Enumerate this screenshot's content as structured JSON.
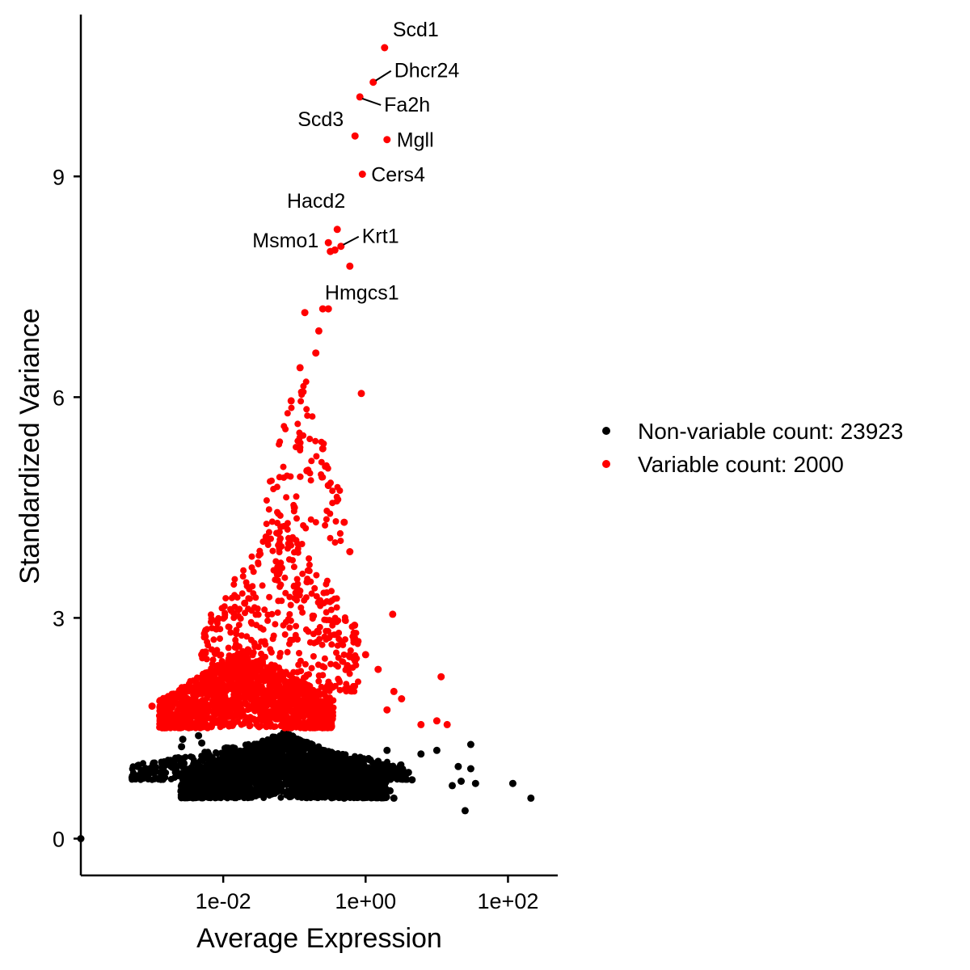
{
  "chart_data": {
    "type": "scatter",
    "xlabel": "Average Expression",
    "ylabel": "Standardized Variance",
    "x_scale": "log10",
    "xlim": [
      0.0001,
      500
    ],
    "ylim": [
      -0.5,
      11.2
    ],
    "x_ticks": [
      {
        "value": 0.01,
        "label": "1e-02"
      },
      {
        "value": 1,
        "label": "1e+00"
      },
      {
        "value": 100,
        "label": "1e+02"
      }
    ],
    "y_ticks": [
      {
        "value": 0,
        "label": "0"
      },
      {
        "value": 3,
        "label": "3"
      },
      {
        "value": 6,
        "label": "6"
      },
      {
        "value": 9,
        "label": "9"
      }
    ],
    "grid": false,
    "legend_position": "right",
    "series": [
      {
        "name": "Non-variable count: 23923",
        "color": "#000000",
        "points": [
          [
            0.0001,
            0
          ],
          [
            0.00063,
            0.98
          ],
          [
            0.00063,
            0.99
          ],
          [
            0.0014,
            0.97
          ],
          [
            0.0014,
            0.95
          ],
          [
            0.0021,
            0.96
          ],
          [
            0.0022,
            0.98
          ],
          [
            0.0026,
            1.25
          ],
          [
            0.0027,
            1.35
          ],
          [
            0.003,
            0.9
          ],
          [
            0.0045,
            1.4
          ],
          [
            0.005,
            1.3
          ],
          [
            0.007,
            1.1
          ],
          [
            3.1,
            1.0
          ],
          [
            4.0,
            0.9
          ],
          [
            4.5,
            0.8
          ],
          [
            6.0,
            1.15
          ],
          [
            10.0,
            1.2
          ],
          [
            16.5,
            0.72
          ],
          [
            20.0,
            0.98
          ],
          [
            22.0,
            0.78
          ],
          [
            25.0,
            0.38
          ],
          [
            30.0,
            0.95
          ],
          [
            30.0,
            1.28
          ],
          [
            35.0,
            0.75
          ],
          [
            117.0,
            0.75
          ],
          [
            210.0,
            0.55
          ],
          [
            0.5,
            0.55
          ],
          [
            0.8,
            0.6
          ],
          [
            1.2,
            0.7
          ],
          [
            1.8,
            0.85
          ],
          [
            2.2,
            0.65
          ],
          [
            2.5,
            0.55
          ],
          [
            1.5,
            1.05
          ],
          [
            2.0,
            1.2
          ]
        ]
      },
      {
        "name": "Variable count: 2000",
        "color": "#ff0000",
        "points": [
          [
            1.85,
            10.75
          ],
          [
            1.28,
            10.28
          ],
          [
            0.83,
            10.08
          ],
          [
            0.71,
            9.55
          ],
          [
            2.0,
            9.5
          ],
          [
            0.9,
            9.03
          ],
          [
            0.4,
            8.28
          ],
          [
            0.3,
            8.1
          ],
          [
            0.45,
            8.05
          ],
          [
            0.32,
            7.98
          ],
          [
            0.37,
            8.0
          ],
          [
            0.6,
            7.78
          ],
          [
            0.25,
            7.2
          ],
          [
            0.3,
            7.2
          ],
          [
            0.14,
            7.15
          ],
          [
            0.22,
            6.9
          ],
          [
            0.2,
            6.6
          ],
          [
            0.12,
            6.4
          ],
          [
            0.87,
            6.05
          ],
          [
            0.09,
            5.95
          ],
          [
            2.4,
            3.05
          ],
          [
            11.5,
            2.2
          ],
          [
            10.0,
            1.6
          ],
          [
            14.0,
            1.55
          ],
          [
            6.0,
            1.55
          ],
          [
            3.2,
            1.9
          ],
          [
            2.0,
            1.75
          ],
          [
            0.001,
            1.8
          ],
          [
            0.0018,
            1.65
          ],
          [
            0.003,
            2.0
          ],
          [
            0.005,
            2.5
          ],
          [
            0.008,
            2.85
          ],
          [
            0.02,
            3.2
          ],
          [
            0.04,
            4.1
          ],
          [
            0.06,
            3.6
          ],
          [
            0.1,
            4.5
          ],
          [
            0.15,
            5.0
          ],
          [
            0.25,
            5.3
          ],
          [
            0.3,
            4.8
          ],
          [
            0.5,
            4.3
          ],
          [
            0.6,
            3.9
          ],
          [
            0.7,
            2.9
          ],
          [
            1.0,
            2.5
          ],
          [
            1.5,
            2.3
          ],
          [
            2.5,
            2.0
          ]
        ]
      }
    ],
    "cloud_clusters": [
      {
        "series": 0,
        "x_log_range": [
          -2.6,
          0.3
        ],
        "y_range": [
          0.55,
          1.45
        ],
        "n": 2600
      },
      {
        "series": 0,
        "x_log_range": [
          -3.3,
          0.6
        ],
        "y_range": [
          0.8,
          1.35
        ],
        "n": 500
      },
      {
        "series": 1,
        "x_log_range": [
          -2.9,
          -0.45
        ],
        "y_range": [
          1.5,
          2.6
        ],
        "n": 1300
      },
      {
        "series": 1,
        "x_log_range": [
          -2.3,
          -0.1
        ],
        "y_range": [
          2.0,
          4.5
        ],
        "n": 450
      },
      {
        "series": 1,
        "x_log_range": [
          -1.4,
          -0.35
        ],
        "y_range": [
          4.0,
          6.5
        ],
        "n": 90
      }
    ],
    "annotations": [
      {
        "label": "Scd1",
        "x": 1.85,
        "y": 10.75
      },
      {
        "label": "Dhcr24",
        "x": 1.28,
        "y": 10.28
      },
      {
        "label": "Fa2h",
        "x": 0.83,
        "y": 10.08
      },
      {
        "label": "Scd3",
        "x": 0.71,
        "y": 9.55
      },
      {
        "label": "Mgll",
        "x": 2.0,
        "y": 9.5
      },
      {
        "label": "Cers4",
        "x": 0.9,
        "y": 9.03
      },
      {
        "label": "Hacd2",
        "x": 0.4,
        "y": 8.28
      },
      {
        "label": "Msmo1",
        "x": 0.3,
        "y": 8.1
      },
      {
        "label": "Krt1",
        "x": 0.45,
        "y": 8.05
      },
      {
        "label": "Hmgcs1",
        "x": 0.6,
        "y": 7.78
      }
    ]
  }
}
